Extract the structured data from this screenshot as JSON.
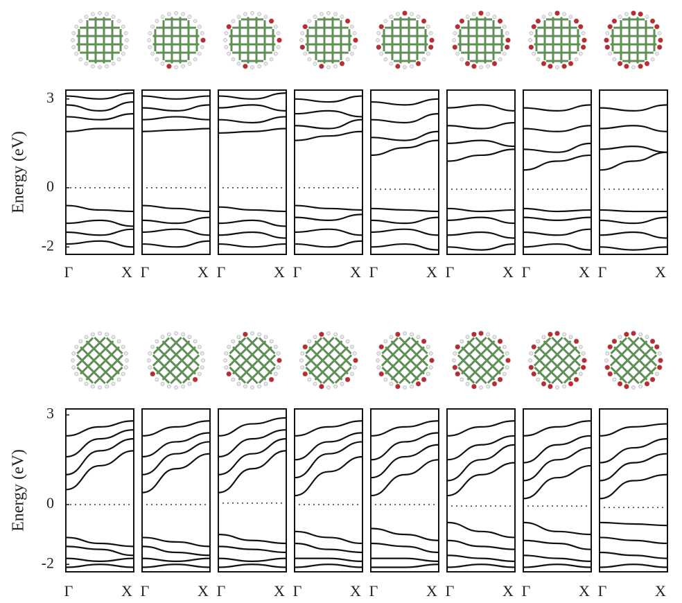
{
  "chart_data": [
    {
      "type": "line",
      "y_label": "Energy (eV)",
      "ylim": [
        -2.25,
        3.3
      ],
      "yticks": [
        -2,
        0,
        3
      ],
      "x": [
        0,
        0.5,
        1
      ],
      "xlim": [
        0,
        1
      ],
      "xticks": [
        {
          "value": 0,
          "label": "Γ"
        },
        {
          "value": 1,
          "label": "X"
        }
      ],
      "color": "#111111",
      "panels": [
        {
          "fermi": 0,
          "bands": [
            [
              1.9,
              2.0,
              2.0
            ],
            [
              2.4,
              2.3,
              2.5
            ],
            [
              2.8,
              2.6,
              2.9
            ],
            [
              3.1,
              3.0,
              3.2
            ],
            [
              -0.6,
              -0.75,
              -0.8
            ],
            [
              -1.2,
              -1.1,
              -1.3
            ],
            [
              -1.5,
              -1.6,
              -1.4
            ],
            [
              -1.9,
              -1.8,
              -2.0
            ]
          ]
        },
        {
          "fermi": 0,
          "bands": [
            [
              1.9,
              1.95,
              2.0
            ],
            [
              2.3,
              2.4,
              2.3
            ],
            [
              2.7,
              2.6,
              2.8
            ],
            [
              3.1,
              3.0,
              3.1
            ],
            [
              -0.6,
              -0.7,
              -0.8
            ],
            [
              -1.1,
              -1.2,
              -1.0
            ],
            [
              -1.5,
              -1.4,
              -1.6
            ],
            [
              -1.9,
              -2.0,
              -1.8
            ]
          ]
        },
        {
          "fermi": 0,
          "bands": [
            [
              1.85,
              1.9,
              2.0
            ],
            [
              2.3,
              2.2,
              2.4
            ],
            [
              2.7,
              2.8,
              2.6
            ],
            [
              3.1,
              3.0,
              3.2
            ],
            [
              -0.65,
              -0.75,
              -0.8
            ],
            [
              -1.2,
              -1.1,
              -1.3
            ],
            [
              -1.6,
              -1.5,
              -1.7
            ],
            [
              -1.9,
              -2.0,
              -1.9
            ]
          ]
        },
        {
          "fermi": 0,
          "bands": [
            [
              1.6,
              1.75,
              1.9
            ],
            [
              2.1,
              2.0,
              2.3
            ],
            [
              2.5,
              2.6,
              2.4
            ],
            [
              3.0,
              2.9,
              3.1
            ],
            [
              -0.6,
              -0.7,
              -0.75
            ],
            [
              -1.0,
              -1.1,
              -0.9
            ],
            [
              -1.5,
              -1.4,
              -1.6
            ],
            [
              -1.9,
              -2.0,
              -1.8
            ]
          ]
        },
        {
          "fermi": -0.05,
          "bands": [
            [
              1.1,
              1.35,
              1.6
            ],
            [
              1.7,
              1.6,
              1.9
            ],
            [
              2.3,
              2.2,
              2.5
            ],
            [
              2.9,
              2.8,
              3.0
            ],
            [
              -0.7,
              -0.75,
              -0.8
            ],
            [
              -1.1,
              -1.2,
              -1.0
            ],
            [
              -1.5,
              -1.4,
              -1.6
            ],
            [
              -2.0,
              -1.9,
              -2.1
            ]
          ]
        },
        {
          "fermi": -0.05,
          "bands": [
            [
              0.9,
              1.1,
              1.3
            ],
            [
              1.5,
              1.6,
              1.4
            ],
            [
              2.1,
              2.0,
              2.2
            ],
            [
              2.7,
              2.8,
              2.6
            ],
            [
              -0.7,
              -0.8,
              -0.75
            ],
            [
              -1.1,
              -1.0,
              -1.2
            ],
            [
              -1.6,
              -1.5,
              -1.7
            ],
            [
              -2.0,
              -2.1,
              -1.9
            ]
          ]
        },
        {
          "fermi": -0.05,
          "bands": [
            [
              0.6,
              0.9,
              1.1
            ],
            [
              1.3,
              1.2,
              1.5
            ],
            [
              2.0,
              1.9,
              2.1
            ],
            [
              2.7,
              2.6,
              2.8
            ],
            [
              -0.7,
              -0.8,
              -0.75
            ],
            [
              -1.0,
              -1.1,
              -1.0
            ],
            [
              -1.5,
              -1.6,
              -1.4
            ],
            [
              -2.0,
              -1.9,
              -2.1
            ]
          ]
        },
        {
          "fermi": -0.05,
          "bands": [
            [
              0.6,
              0.9,
              1.2
            ],
            [
              1.3,
              1.4,
              1.2
            ],
            [
              2.0,
              2.1,
              1.9
            ],
            [
              2.7,
              2.6,
              2.8
            ],
            [
              -0.75,
              -0.8,
              -0.8
            ],
            [
              -1.1,
              -1.2,
              -1.0
            ],
            [
              -1.6,
              -1.5,
              -1.7
            ],
            [
              -2.0,
              -2.1,
              -2.0
            ]
          ]
        }
      ]
    },
    {
      "type": "line",
      "y_label": "Energy (eV)",
      "ylim": [
        -2.25,
        3.2
      ],
      "yticks": [
        -2,
        0,
        3
      ],
      "x": [
        0,
        0.5,
        1
      ],
      "xlim": [
        0,
        1
      ],
      "xticks": [
        {
          "value": 0,
          "label": "Γ"
        },
        {
          "value": 1,
          "label": "X"
        }
      ],
      "color": "#111111",
      "panels": [
        {
          "fermi": 0,
          "bands": [
            [
              0.5,
              1.3,
              1.8
            ],
            [
              1.0,
              1.8,
              2.2
            ],
            [
              1.6,
              2.2,
              2.5
            ],
            [
              2.3,
              2.6,
              2.8
            ],
            [
              -1.1,
              -1.3,
              -1.4
            ],
            [
              -1.4,
              -1.5,
              -1.7
            ],
            [
              -1.8,
              -1.9,
              -1.8
            ],
            [
              -2.1,
              -2.0,
              -2.1
            ]
          ]
        },
        {
          "fermi": 0,
          "bands": [
            [
              0.4,
              1.2,
              1.7
            ],
            [
              1.0,
              1.7,
              2.1
            ],
            [
              1.6,
              2.1,
              2.4
            ],
            [
              2.3,
              2.6,
              2.8
            ],
            [
              -1.1,
              -1.25,
              -1.4
            ],
            [
              -1.4,
              -1.6,
              -1.7
            ],
            [
              -1.8,
              -1.9,
              -1.8
            ],
            [
              -2.1,
              -2.0,
              -2.1
            ]
          ]
        },
        {
          "fermi": 0.05,
          "bands": [
            [
              0.4,
              1.2,
              1.8
            ],
            [
              1.0,
              1.7,
              2.2
            ],
            [
              1.6,
              2.2,
              2.5
            ],
            [
              2.3,
              2.7,
              2.9
            ],
            [
              -1.0,
              -1.2,
              -1.3
            ],
            [
              -1.4,
              -1.5,
              -1.6
            ],
            [
              -1.8,
              -1.9,
              -1.8
            ],
            [
              -2.1,
              -2.0,
              -2.1
            ]
          ]
        },
        {
          "fermi": 0,
          "bands": [
            [
              0.3,
              1.1,
              1.6
            ],
            [
              0.9,
              1.7,
              2.1
            ],
            [
              1.5,
              2.1,
              2.4
            ],
            [
              2.3,
              2.6,
              2.8
            ],
            [
              -0.9,
              -1.1,
              -1.3
            ],
            [
              -1.3,
              -1.5,
              -1.6
            ],
            [
              -1.8,
              -1.8,
              -1.9
            ],
            [
              -2.1,
              -2.0,
              -2.1
            ]
          ]
        },
        {
          "fermi": 0,
          "bands": [
            [
              0.3,
              1.0,
              1.5
            ],
            [
              0.9,
              1.6,
              2.0
            ],
            [
              1.5,
              2.1,
              2.4
            ],
            [
              2.3,
              2.6,
              2.8
            ],
            [
              -0.8,
              -1.0,
              -1.2
            ],
            [
              -1.3,
              -1.4,
              -1.6
            ],
            [
              -1.8,
              -1.8,
              -1.9
            ],
            [
              -2.1,
              -2.1,
              -2.0
            ]
          ]
        },
        {
          "fermi": -0.05,
          "bands": [
            [
              0.3,
              1.0,
              1.4
            ],
            [
              0.8,
              1.5,
              2.0
            ],
            [
              1.5,
              2.0,
              2.3
            ],
            [
              2.3,
              2.6,
              2.8
            ],
            [
              -0.6,
              -0.9,
              -1.1
            ],
            [
              -1.2,
              -1.4,
              -1.5
            ],
            [
              -1.7,
              -1.8,
              -1.9
            ],
            [
              -2.1,
              -2.0,
              -2.1
            ]
          ]
        },
        {
          "fermi": -0.05,
          "bands": [
            [
              0.2,
              0.9,
              1.3
            ],
            [
              0.8,
              1.5,
              1.9
            ],
            [
              1.4,
              2.0,
              2.3
            ],
            [
              2.3,
              2.6,
              2.8
            ],
            [
              -0.6,
              -0.9,
              -1.0
            ],
            [
              -1.2,
              -1.3,
              -1.5
            ],
            [
              -1.7,
              -1.8,
              -1.9
            ],
            [
              -2.1,
              -2.0,
              -2.1
            ]
          ]
        },
        {
          "fermi": -0.1,
          "bands": [
            [
              0.2,
              0.8,
              1.0
            ],
            [
              0.8,
              1.4,
              1.7
            ],
            [
              1.4,
              1.9,
              2.2
            ],
            [
              2.3,
              2.6,
              2.7
            ],
            [
              -0.6,
              -0.65,
              -0.7
            ],
            [
              -1.1,
              -1.2,
              -1.3
            ],
            [
              -1.6,
              -1.7,
              -1.8
            ],
            [
              -2.1,
              -2.0,
              -2.1
            ]
          ]
        }
      ]
    }
  ]
}
